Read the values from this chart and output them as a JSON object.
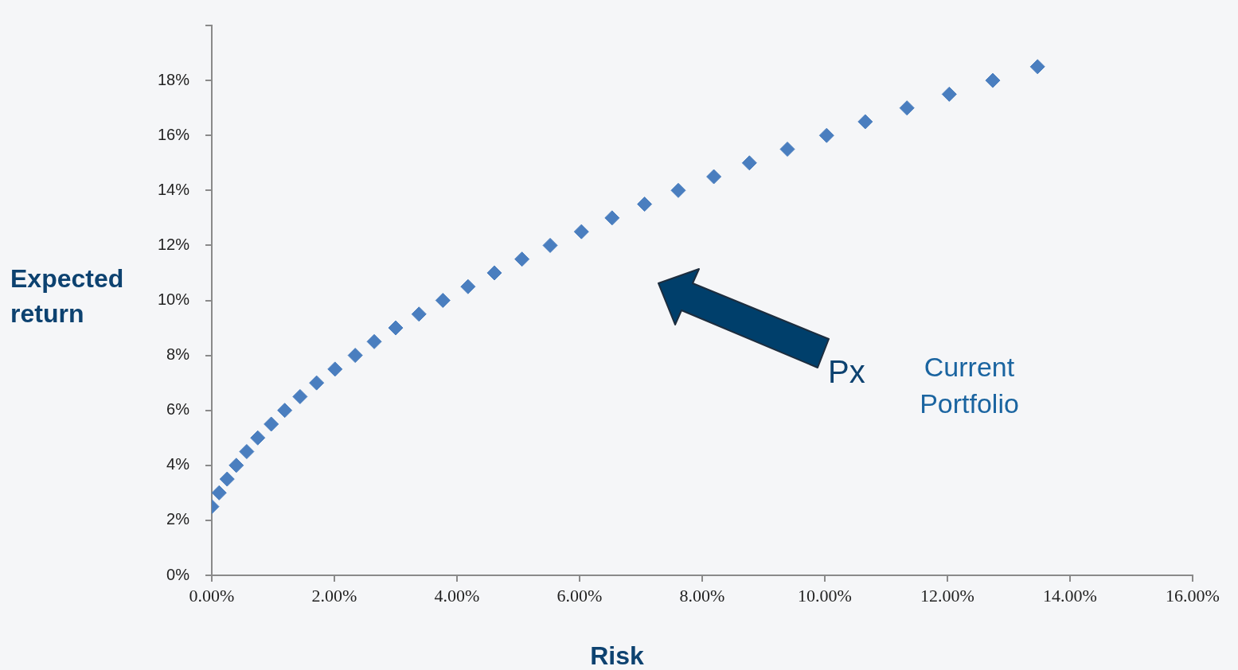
{
  "chart_data": {
    "type": "scatter",
    "xlabel": "Risk",
    "ylabel": "Expected return",
    "x": [
      0,
      0.12,
      0.25,
      0.4,
      0.57,
      0.75,
      0.97,
      1.19,
      1.44,
      1.71,
      2.01,
      2.34,
      2.65,
      3.0,
      3.38,
      3.77,
      4.18,
      4.61,
      5.06,
      5.52,
      6.03,
      6.53,
      7.06,
      7.61,
      8.19,
      8.77,
      9.39,
      10.03,
      10.66,
      11.34,
      12.03,
      12.74,
      13.47
    ],
    "values": [
      2.5,
      3,
      3.5,
      4,
      4.5,
      5,
      5.5,
      6,
      6.5,
      7,
      7.5,
      8,
      8.5,
      9,
      9.5,
      10,
      10.5,
      11,
      11.5,
      12,
      12.5,
      13,
      13.5,
      14,
      14.5,
      15,
      15.5,
      16,
      16.5,
      17,
      17.5,
      18,
      18.5
    ],
    "color": "#4a7ebf",
    "marker": "diamond",
    "xlim": [
      0,
      16
    ],
    "xticks": [
      {
        "value": 0,
        "label": "0.00%"
      },
      {
        "value": 2,
        "label": "2.00%"
      },
      {
        "value": 4,
        "label": "4.00%"
      },
      {
        "value": 6,
        "label": "6.00%"
      },
      {
        "value": 8,
        "label": "8.00%"
      },
      {
        "value": 10,
        "label": "10.00%"
      },
      {
        "value": 12,
        "label": "12.00%"
      },
      {
        "value": 14,
        "label": "14.00%"
      },
      {
        "value": 16,
        "label": "16.00%"
      }
    ],
    "ylim": [
      0,
      20
    ],
    "yticks": [
      {
        "value": 0,
        "label": "0%"
      },
      {
        "value": 2,
        "label": "2%"
      },
      {
        "value": 4,
        "label": "4%"
      },
      {
        "value": 6,
        "label": "6%"
      },
      {
        "value": 8,
        "label": "8%"
      },
      {
        "value": 10,
        "label": "10%"
      },
      {
        "value": 12,
        "label": "12%"
      },
      {
        "value": 14,
        "label": "14%"
      },
      {
        "value": 16,
        "label": "16%"
      },
      {
        "value": 18,
        "label": "18%"
      },
      {
        "value": 20,
        "label": null
      }
    ],
    "annotations": [
      "Px",
      "Current Portfolio"
    ],
    "grid": false,
    "legend": false
  }
}
